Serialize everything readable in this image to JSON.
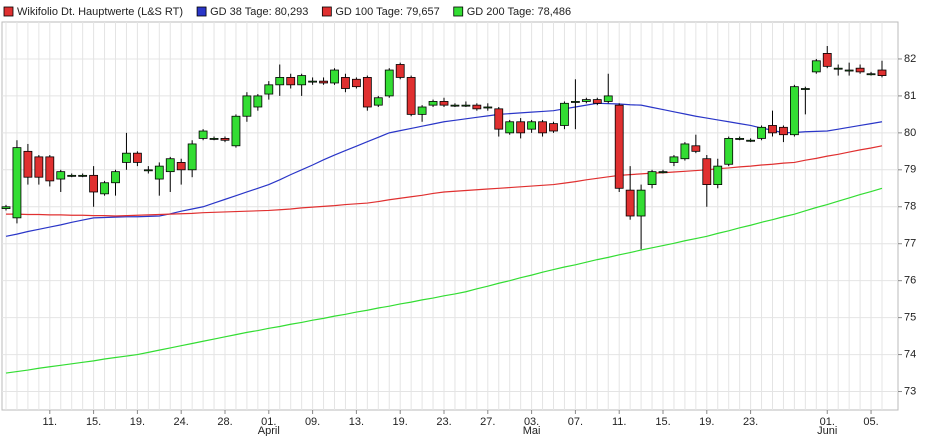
{
  "chart_data": {
    "type": "candlestick",
    "categories": [
      null,
      null,
      null,
      null,
      "11.",
      null,
      null,
      null,
      "15.",
      null,
      null,
      null,
      "19.",
      null,
      null,
      null,
      "24.",
      null,
      null,
      null,
      "28.",
      null,
      null,
      null,
      "01.",
      null,
      null,
      null,
      "09.",
      null,
      null,
      null,
      "13.",
      null,
      null,
      null,
      "19.",
      null,
      null,
      null,
      "23.",
      null,
      null,
      null,
      "27.",
      null,
      null,
      null,
      "03.",
      null,
      null,
      null,
      "07.",
      null,
      null,
      null,
      "11.",
      null,
      null,
      null,
      "15.",
      null,
      null,
      null,
      "19.",
      null,
      null,
      null,
      "23.",
      null,
      null,
      null,
      null,
      null,
      null,
      "01.",
      null,
      null,
      null,
      "05.",
      null
    ],
    "months": [
      null,
      null,
      null,
      null,
      null,
      null,
      null,
      null,
      null,
      null,
      null,
      null,
      null,
      null,
      null,
      null,
      null,
      null,
      null,
      null,
      null,
      null,
      null,
      null,
      "April",
      null,
      null,
      null,
      null,
      null,
      null,
      null,
      null,
      null,
      null,
      null,
      null,
      null,
      null,
      null,
      null,
      null,
      null,
      null,
      null,
      null,
      null,
      null,
      "Mai",
      null,
      null,
      null,
      null,
      null,
      null,
      null,
      null,
      null,
      null,
      null,
      null,
      null,
      null,
      null,
      null,
      null,
      null,
      null,
      null,
      null,
      null,
      null,
      null,
      null,
      null,
      "Juni",
      null,
      null,
      null,
      null,
      null
    ],
    "ylim": [
      72.5,
      83
    ],
    "yticks": [
      73,
      74,
      75,
      76,
      77,
      78,
      79,
      80,
      81,
      82
    ],
    "grid": true,
    "series": [
      {
        "name": "Wikifolio Dt. Hauptwerte (L&S RT)",
        "color": "#e03030",
        "up_color": "#33dd33",
        "open": [
          77.95,
          77.7,
          79.5,
          79.35,
          79.35,
          78.75,
          78.85,
          78.85,
          78.85,
          78.35,
          78.65,
          79.2,
          79.45,
          79.0,
          78.75,
          78.95,
          79.2,
          79.0,
          79.85,
          79.85,
          79.85,
          79.65,
          80.45,
          80.7,
          81.05,
          81.3,
          81.5,
          81.3,
          81.4,
          81.4,
          81.35,
          81.5,
          81.45,
          81.5,
          80.75,
          81.0,
          81.85,
          81.5,
          80.5,
          80.75,
          80.85,
          80.75,
          80.75,
          80.75,
          80.7,
          80.65,
          80.0,
          80.3,
          80.1,
          80.3,
          80.25,
          80.2,
          80.85,
          80.85,
          80.9,
          80.85,
          80.75,
          78.45,
          77.75,
          78.6,
          78.95,
          79.2,
          79.3,
          79.65,
          79.3,
          78.6,
          79.15,
          79.85,
          79.8,
          79.85,
          80.2,
          80.15,
          79.95,
          81.2,
          81.65,
          82.15,
          81.75,
          81.7,
          81.75,
          81.6,
          81.7
        ],
        "high": [
          78.05,
          79.8,
          79.7,
          79.4,
          79.4,
          79.0,
          78.9,
          78.9,
          79.1,
          78.7,
          79.0,
          80.0,
          79.5,
          79.1,
          79.2,
          79.35,
          79.3,
          79.8,
          80.1,
          79.9,
          79.9,
          80.5,
          81.1,
          81.05,
          81.4,
          81.85,
          81.6,
          81.6,
          81.5,
          81.5,
          81.75,
          81.6,
          81.5,
          81.55,
          81.0,
          81.75,
          81.9,
          81.55,
          80.75,
          80.9,
          80.95,
          80.8,
          80.85,
          80.8,
          80.8,
          80.7,
          80.35,
          80.4,
          80.35,
          80.35,
          80.3,
          80.85,
          81.45,
          80.95,
          80.95,
          81.6,
          80.8,
          79.1,
          78.6,
          79.0,
          79.0,
          79.4,
          79.75,
          79.95,
          79.4,
          79.3,
          79.9,
          79.9,
          79.85,
          80.2,
          80.6,
          80.2,
          81.3,
          81.25,
          82.0,
          82.35,
          81.85,
          81.9,
          81.85,
          81.65,
          81.95
        ],
        "low": [
          77.9,
          77.55,
          78.6,
          78.6,
          78.55,
          78.4,
          78.8,
          78.8,
          78.0,
          78.3,
          78.3,
          79.0,
          79.1,
          78.9,
          78.3,
          78.4,
          78.6,
          78.8,
          79.8,
          79.8,
          79.75,
          79.6,
          80.3,
          80.6,
          80.9,
          81.0,
          81.2,
          81.0,
          81.3,
          81.3,
          81.3,
          81.1,
          81.2,
          80.6,
          80.7,
          80.95,
          81.45,
          80.45,
          80.3,
          80.7,
          80.7,
          80.7,
          80.7,
          80.6,
          80.6,
          79.9,
          79.95,
          79.85,
          80.0,
          79.9,
          80.0,
          80.1,
          80.1,
          80.8,
          80.75,
          80.8,
          78.4,
          77.65,
          76.85,
          78.5,
          78.9,
          79.1,
          79.25,
          79.45,
          78.0,
          78.5,
          79.1,
          79.8,
          79.75,
          79.8,
          79.9,
          79.75,
          79.9,
          80.5,
          81.6,
          81.75,
          81.55,
          81.55,
          81.6,
          81.55,
          81.5
        ],
        "close": [
          78.0,
          79.6,
          78.8,
          78.8,
          78.7,
          78.95,
          78.85,
          78.85,
          78.4,
          78.65,
          78.95,
          79.45,
          79.2,
          79.0,
          79.1,
          79.3,
          79.0,
          79.7,
          80.05,
          79.85,
          79.8,
          80.45,
          81.0,
          81.0,
          81.3,
          81.5,
          81.3,
          81.55,
          81.4,
          81.35,
          81.7,
          81.2,
          81.25,
          80.7,
          80.95,
          81.7,
          81.5,
          80.5,
          80.7,
          80.85,
          80.75,
          80.75,
          80.75,
          80.65,
          80.7,
          80.1,
          80.3,
          80.0,
          80.3,
          80.0,
          80.05,
          80.8,
          80.85,
          80.9,
          80.8,
          81.0,
          78.5,
          77.75,
          78.45,
          78.95,
          78.95,
          79.35,
          79.7,
          79.5,
          78.6,
          79.1,
          79.85,
          79.85,
          79.8,
          80.15,
          80.0,
          79.95,
          81.25,
          81.2,
          81.95,
          81.8,
          81.75,
          81.7,
          81.65,
          81.6,
          81.55
        ]
      },
      {
        "name": "GD 38 Tage: 80,293",
        "color": "#2a36c8",
        "values": [
          77.2,
          77.26,
          77.33,
          77.39,
          77.45,
          77.51,
          77.58,
          77.64,
          77.7,
          77.71,
          77.72,
          77.73,
          77.73,
          77.74,
          77.75,
          77.81,
          77.88,
          77.94,
          78.0,
          78.1,
          78.2,
          78.3,
          78.4,
          78.5,
          78.6,
          78.73,
          78.87,
          79.0,
          79.13,
          79.27,
          79.4,
          79.52,
          79.64,
          79.76,
          79.88,
          80.0,
          80.06,
          80.12,
          80.18,
          80.24,
          80.3,
          80.34,
          80.38,
          80.42,
          80.46,
          80.5,
          80.52,
          80.54,
          80.56,
          80.58,
          80.6,
          80.65,
          80.7,
          80.75,
          80.8,
          80.79,
          80.78,
          80.76,
          80.75,
          80.69,
          80.63,
          80.57,
          80.51,
          80.45,
          80.4,
          80.35,
          80.3,
          80.25,
          80.2,
          80.13,
          80.07,
          80.0,
          80.01,
          80.03,
          80.04,
          80.05,
          80.1,
          80.15,
          80.2,
          80.25,
          80.3
        ]
      },
      {
        "name": "GD 100 Tage: 79,657",
        "color": "#e03030",
        "values": [
          77.8,
          77.8,
          77.79,
          77.79,
          77.78,
          77.78,
          77.77,
          77.77,
          77.76,
          77.76,
          77.75,
          77.76,
          77.77,
          77.78,
          77.79,
          77.8,
          77.81,
          77.82,
          77.84,
          77.85,
          77.86,
          77.87,
          77.88,
          77.89,
          77.9,
          77.92,
          77.94,
          77.97,
          77.99,
          78.01,
          78.03,
          78.06,
          78.08,
          78.1,
          78.14,
          78.19,
          78.23,
          78.27,
          78.31,
          78.36,
          78.4,
          78.42,
          78.44,
          78.46,
          78.48,
          78.5,
          78.52,
          78.54,
          78.56,
          78.58,
          78.6,
          78.64,
          78.68,
          78.73,
          78.77,
          78.81,
          78.85,
          78.87,
          78.89,
          78.91,
          78.92,
          78.94,
          78.96,
          78.98,
          79.0,
          79.03,
          79.05,
          79.08,
          79.1,
          79.13,
          79.15,
          79.18,
          79.2,
          79.26,
          79.31,
          79.37,
          79.42,
          79.48,
          79.54,
          79.59,
          79.65
        ]
      },
      {
        "name": "GD 200 Tage: 78,486",
        "color": "#33dd33",
        "values": [
          73.5,
          73.54,
          73.58,
          73.63,
          73.67,
          73.71,
          73.75,
          73.79,
          73.83,
          73.88,
          73.92,
          73.96,
          74.0,
          74.06,
          74.12,
          74.18,
          74.24,
          74.3,
          74.36,
          74.42,
          74.48,
          74.54,
          74.6,
          74.65,
          74.71,
          74.76,
          74.82,
          74.87,
          74.93,
          74.98,
          75.04,
          75.09,
          75.15,
          75.2,
          75.26,
          75.31,
          75.37,
          75.42,
          75.48,
          75.53,
          75.59,
          75.64,
          75.7,
          75.78,
          75.85,
          75.93,
          76.0,
          76.08,
          76.15,
          76.23,
          76.3,
          76.37,
          76.43,
          76.5,
          76.57,
          76.63,
          76.7,
          76.76,
          76.83,
          76.89,
          76.95,
          77.01,
          77.08,
          77.14,
          77.2,
          77.28,
          77.35,
          77.43,
          77.5,
          77.58,
          77.65,
          77.73,
          77.8,
          77.89,
          77.98,
          78.06,
          78.15,
          78.24,
          78.33,
          78.41,
          78.5
        ]
      }
    ]
  }
}
